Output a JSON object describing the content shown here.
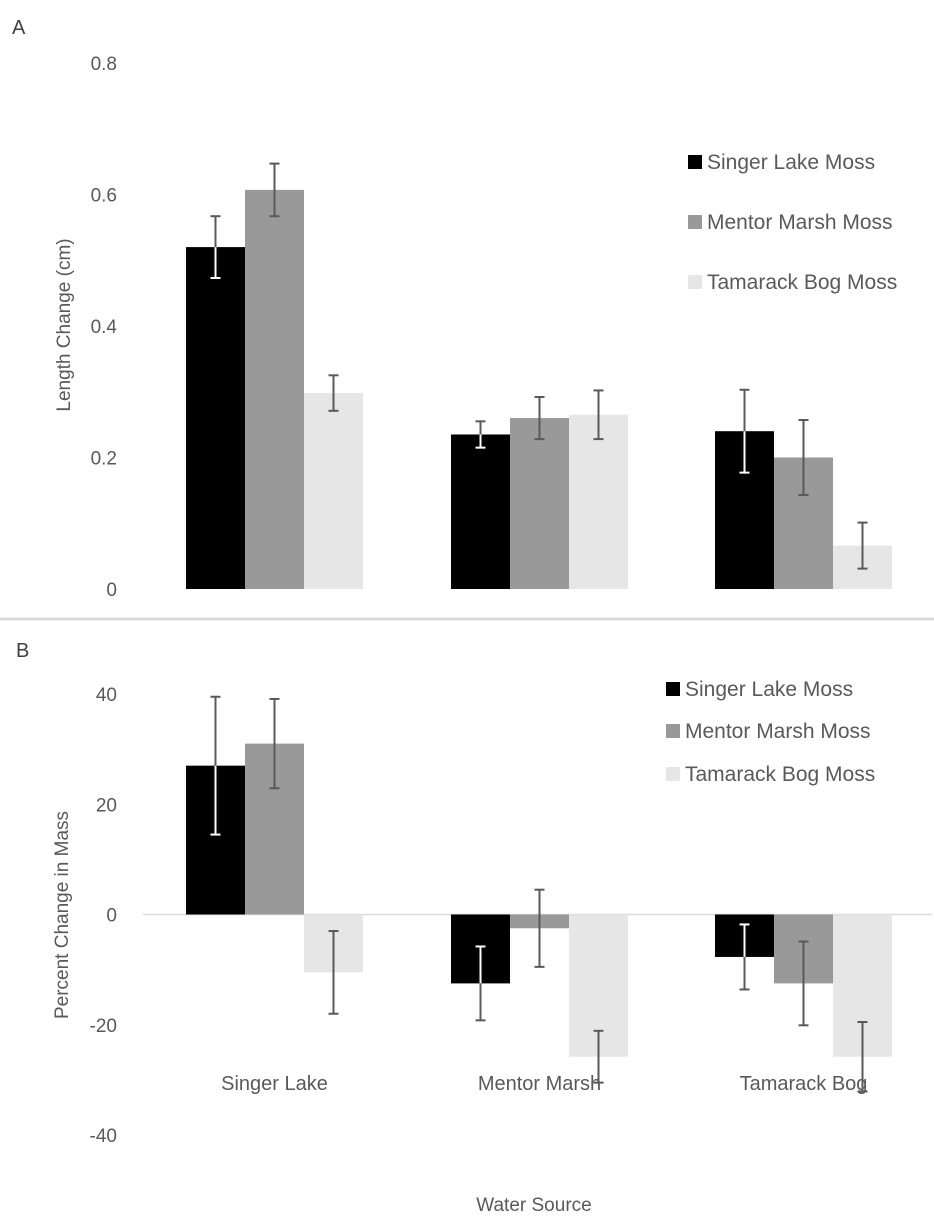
{
  "x_axis_title": "Water Source",
  "colors": {
    "Singer Lake Moss": "#000000",
    "Mentor Marsh Moss": "#999999",
    "Tamarack Bog Moss": "#e6e6e6",
    "error_bar_dark": "#595959",
    "error_bar_light": "#ffffff",
    "separator": "#d9d9d9",
    "zero_line": "#d9d9d9"
  },
  "chart_data": [
    {
      "panel": "A",
      "type": "bar",
      "title": "",
      "xlabel": "",
      "ylabel": "Length Change (cm)",
      "ylim": [
        0,
        0.8
      ],
      "yticks": [
        "0",
        "0.2",
        "0.4",
        "0.6",
        "0.8"
      ],
      "ytick_values": [
        0,
        0.2,
        0.4,
        0.6,
        0.8
      ],
      "grid": false,
      "legend_position": "right",
      "categories": [
        "Singer Lake",
        "Mentor Marsh",
        "Tamarack Bog"
      ],
      "series": [
        {
          "name": "Singer Lake Moss",
          "values": [
            0.52,
            0.235,
            0.24
          ],
          "errors": [
            0.047,
            0.02,
            0.063
          ]
        },
        {
          "name": "Mentor Marsh Moss",
          "values": [
            0.607,
            0.26,
            0.2
          ],
          "errors": [
            0.04,
            0.032,
            0.057
          ]
        },
        {
          "name": "Tamarack Bog Moss",
          "values": [
            0.298,
            0.265,
            0.066
          ],
          "errors": [
            0.027,
            0.037,
            0.035
          ]
        }
      ]
    },
    {
      "panel": "B",
      "type": "bar",
      "title": "",
      "xlabel": "Water Source",
      "ylabel": "Percent Change in Mass",
      "ylim": [
        -40,
        40
      ],
      "yticks": [
        "-40",
        "-20",
        "0",
        "20",
        "40"
      ],
      "ytick_values": [
        -40,
        -20,
        0,
        20,
        40
      ],
      "grid": false,
      "legend_position": "top-right",
      "categories": [
        "Singer Lake",
        "Mentor Marsh",
        "Tamarack Bog"
      ],
      "series": [
        {
          "name": "Singer Lake Moss",
          "values": [
            27,
            -12.5,
            -7.7
          ],
          "errors": [
            12.5,
            6.7,
            5.9
          ]
        },
        {
          "name": "Mentor Marsh Moss",
          "values": [
            31,
            -2.5,
            -12.5
          ],
          "errors": [
            8.1,
            7,
            7.6
          ]
        },
        {
          "name": "Tamarack Bog Moss",
          "values": [
            -10.5,
            -25.8,
            -25.8
          ],
          "errors": [
            7.5,
            4.7,
            6.3
          ]
        }
      ]
    }
  ]
}
